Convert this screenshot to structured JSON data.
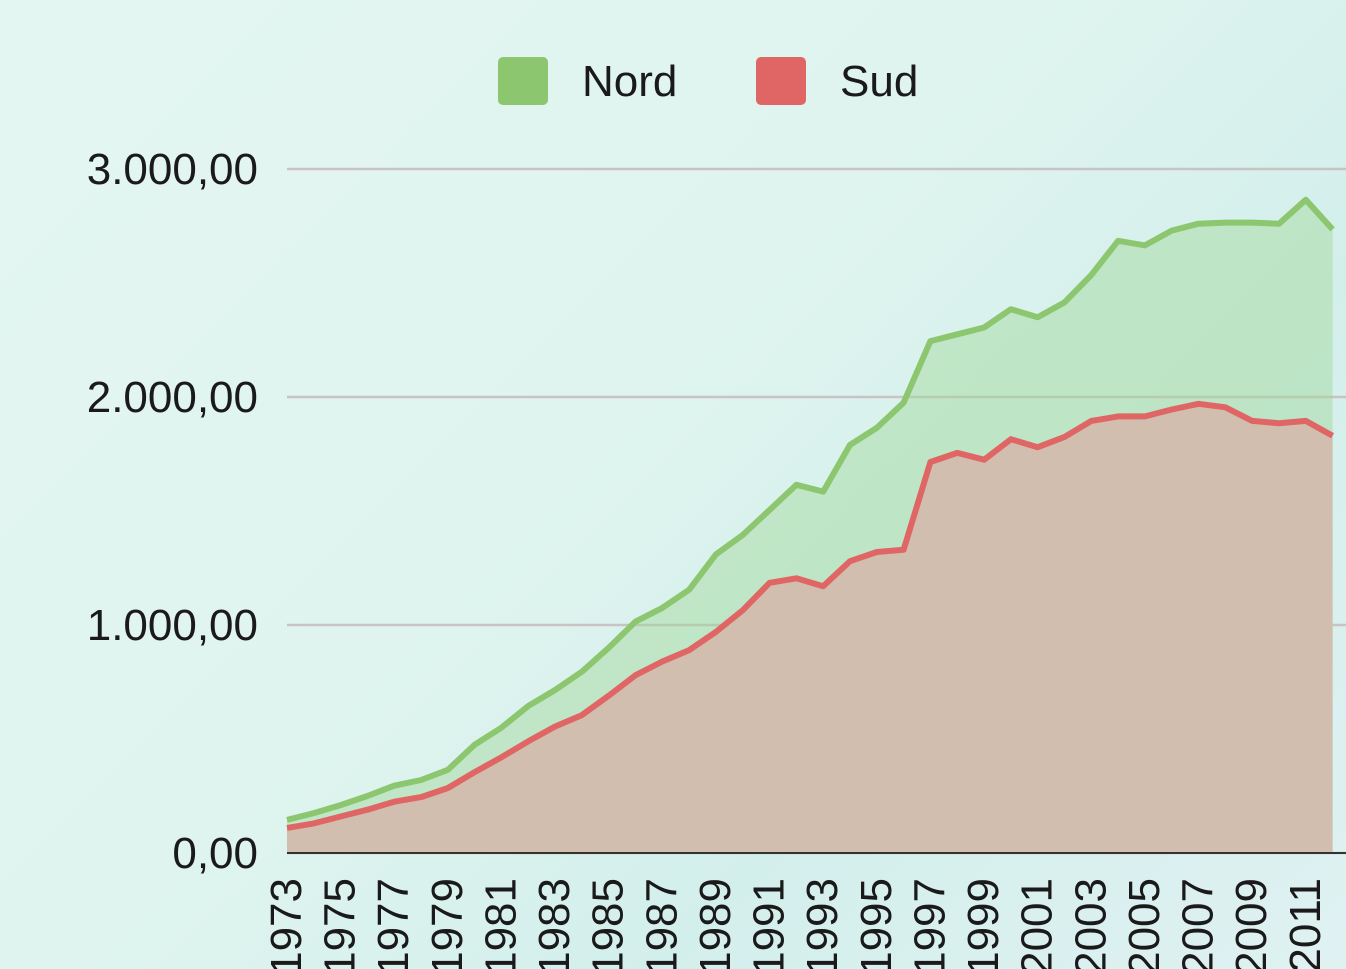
{
  "chart_data": {
    "type": "area",
    "x": [
      1973,
      1974,
      1975,
      1976,
      1977,
      1978,
      1979,
      1980,
      1981,
      1982,
      1983,
      1984,
      1985,
      1986,
      1987,
      1988,
      1989,
      1990,
      1991,
      1992,
      1993,
      1994,
      1995,
      1996,
      1997,
      1998,
      1999,
      2000,
      2001,
      2002,
      2003,
      2004,
      2005,
      2006,
      2007,
      2008,
      2009,
      2010,
      2011,
      2012
    ],
    "series": [
      {
        "name": "Nord",
        "color": "#8cc66e",
        "fill": "rgba(160,214,150,0.45)",
        "values": [
          145,
          175,
          210,
          250,
          295,
          320,
          365,
          475,
          550,
          645,
          715,
          795,
          900,
          1015,
          1075,
          1155,
          1310,
          1395,
          1505,
          1615,
          1585,
          1790,
          1865,
          1975,
          2245,
          2275,
          2305,
          2385,
          2350,
          2415,
          2535,
          2685,
          2665,
          2730,
          2760,
          2765,
          2765,
          2760,
          2865,
          2735
        ]
      },
      {
        "name": "Sud",
        "color": "#e06666",
        "fill": "#d1beae",
        "values": [
          110,
          130,
          160,
          190,
          225,
          245,
          285,
          355,
          420,
          490,
          555,
          605,
          690,
          780,
          840,
          890,
          970,
          1065,
          1185,
          1205,
          1170,
          1280,
          1320,
          1330,
          1715,
          1755,
          1725,
          1815,
          1780,
          1825,
          1895,
          1915,
          1915,
          1945,
          1970,
          1955,
          1895,
          1885,
          1895,
          1830
        ]
      }
    ],
    "xlim": [
      1973,
      2012.5
    ],
    "xticks": [
      1973,
      1975,
      1977,
      1979,
      1981,
      1983,
      1985,
      1987,
      1989,
      1991,
      1993,
      1995,
      1997,
      1999,
      2001,
      2003,
      2005,
      2007,
      2009,
      2011
    ],
    "ylim": [
      0,
      3000
    ],
    "yticks": [
      {
        "value": 0,
        "label": "0,00"
      },
      {
        "value": 1000,
        "label": "1.000,00"
      },
      {
        "value": 2000,
        "label": "2.000,00"
      },
      {
        "value": 3000,
        "label": "3.000,00"
      }
    ],
    "grid": true,
    "legend": "top"
  }
}
